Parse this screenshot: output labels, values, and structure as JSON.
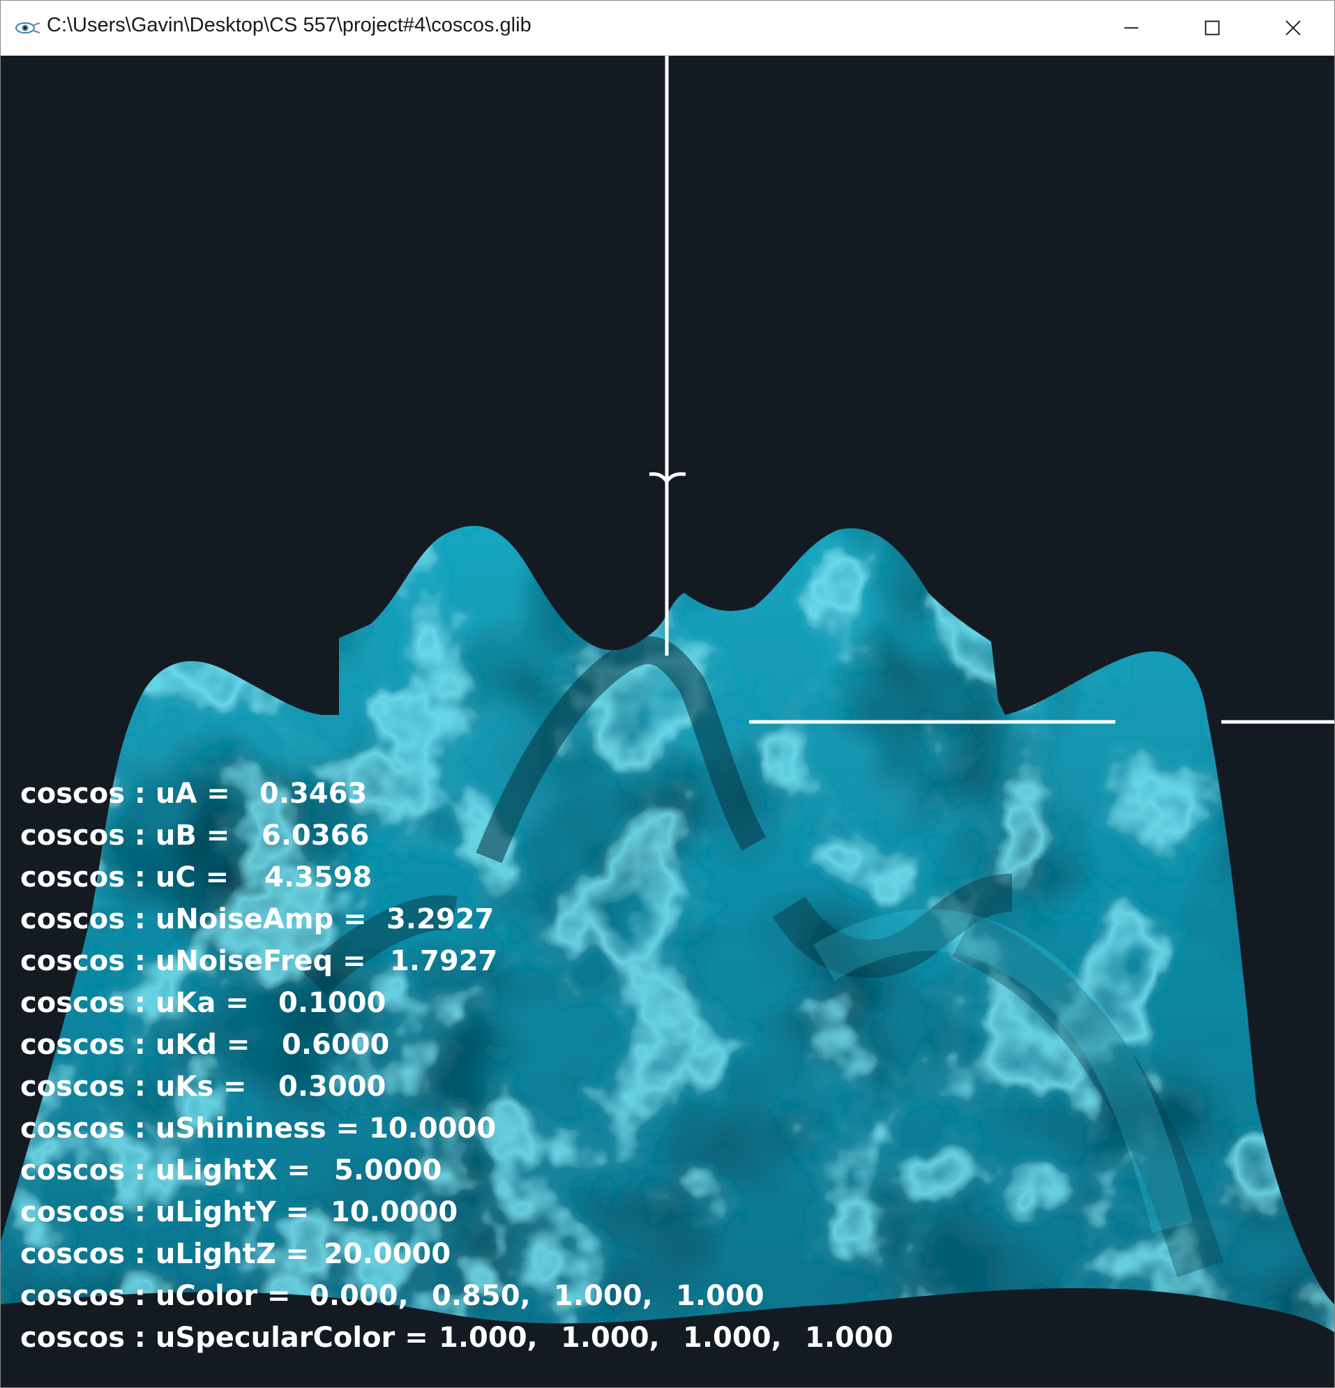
{
  "window": {
    "title": "C:\\Users\\Gavin\\Desktop\\CS 557\\project#4\\coscos.glib"
  },
  "icons": {
    "app": "glman-eye-icon",
    "minimize": "minimize-icon",
    "maximize": "maximize-icon",
    "close": "close-icon"
  },
  "colors": {
    "background": "#141a22",
    "surface": "#00d9ff",
    "axes": "#ffffff",
    "text": "#ffffff"
  },
  "params": [
    {
      "label": "coscos : uA =",
      "values": [
        "0.3463"
      ]
    },
    {
      "label": "coscos : uB =",
      "values": [
        "6.0366"
      ]
    },
    {
      "label": "coscos : uC =",
      "values": [
        "4.3598"
      ]
    },
    {
      "label": "coscos : uNoiseAmp =",
      "values": [
        "3.2927"
      ]
    },
    {
      "label": "coscos : uNoiseFreq =",
      "values": [
        "1.7927"
      ]
    },
    {
      "label": "coscos : uKa =",
      "values": [
        "0.1000"
      ]
    },
    {
      "label": "coscos : uKd =",
      "values": [
        "0.6000"
      ]
    },
    {
      "label": "coscos : uKs =",
      "values": [
        "0.3000"
      ]
    },
    {
      "label": "coscos : uShininess =",
      "values": [
        "10.0000"
      ]
    },
    {
      "label": "coscos : uLightX =",
      "values": [
        "5.0000"
      ]
    },
    {
      "label": "coscos : uLightY =",
      "values": [
        "10.0000"
      ]
    },
    {
      "label": "coscos : uLightZ =",
      "values": [
        "20.0000"
      ]
    },
    {
      "label": "coscos : uColor =",
      "values": [
        "0.000,",
        "0.850,",
        "1.000,",
        "1.000"
      ]
    },
    {
      "label": "coscos : uSpecularColor =",
      "values": [
        "1.000,",
        "1.000,",
        "1.000,",
        "1.000"
      ]
    }
  ]
}
